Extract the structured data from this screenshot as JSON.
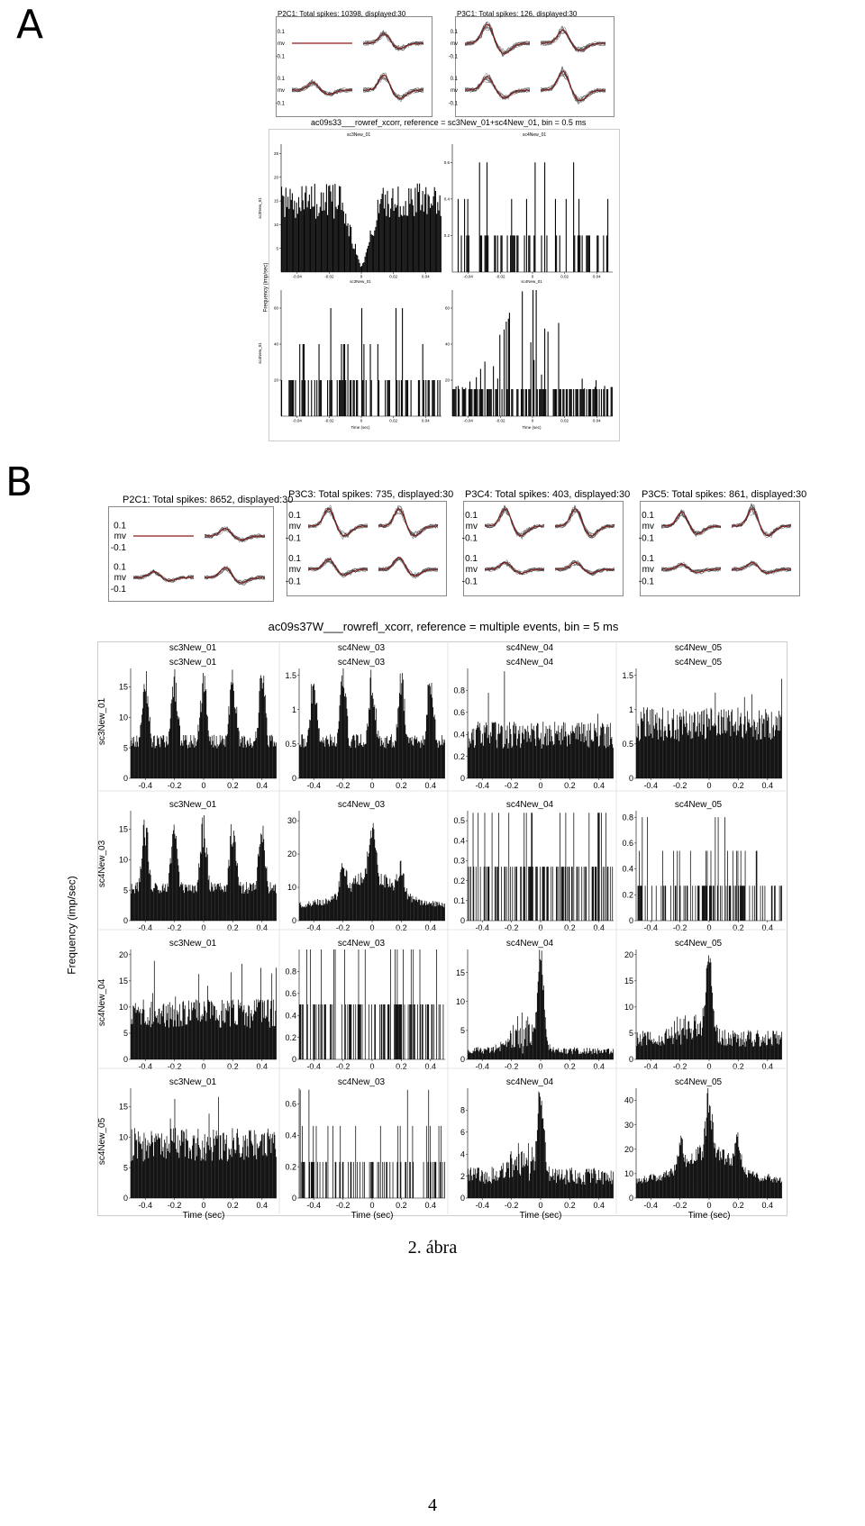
{
  "panels": {
    "a_label": "A",
    "b_label": "B"
  },
  "panel_a": {
    "waveform_titles": [
      "P2C1: Total spikes: 10398, displayed:30",
      "P3C1: Total spikes: 126, displayed:30"
    ],
    "waveform_axis": [
      "0.1",
      "mv",
      "-0.1",
      "0.1",
      "mv",
      "-0.1"
    ],
    "title": "ac09s33___rowref_xcorr, reference = sc3New_01+sc4New_01, bin = 0.5 ms",
    "col_labels": [
      "sc3New_01",
      "sc4New_01"
    ],
    "row_labels": [
      "sc3New_01",
      "sc4New_01"
    ],
    "ylabel": "Frequency (imp/sec)",
    "xlabel": "Time (sec)",
    "xticks": [
      "-0.04",
      "-0.02",
      "0",
      "0.02",
      "0.04"
    ]
  },
  "panel_b": {
    "waveform_titles": [
      "P2C1: Total spikes: 8652, displayed:30",
      "P3C3: Total spikes: 735, displayed:30",
      "P3C4: Total spikes: 403, displayed:30",
      "P3C5: Total spikes: 861, displayed:30"
    ],
    "waveform_axis": [
      "0.1",
      "mv",
      "-0.1",
      "0.1",
      "mv",
      "-0.1"
    ],
    "title": "ac09s37W___rowrefl_xcorr, reference = multiple events, bin = 5 ms",
    "col_headers": [
      "sc3New_01",
      "sc4New_03",
      "sc4New_04",
      "sc4New_05"
    ],
    "row_labels": [
      "sc3New_01",
      "sc4New_03",
      "sc4New_04",
      "sc4New_05"
    ],
    "ylabel": "Frequency (imp/sec)",
    "xlabel": "Time (sec)",
    "xticks": [
      "-0.4",
      "-0.2",
      "0",
      "0.2",
      "0.4"
    ]
  },
  "caption": "2. ábra",
  "page_number": "4",
  "chart_data": [
    {
      "type": "bar",
      "panel": "A",
      "title": "ac09s33___rowref_xcorr, reference = sc3New_01+sc4New_01, bin = 0.5 ms",
      "xlabel": "Time (sec)",
      "ylabel": "Frequency (imp/sec)",
      "xlim": [
        -0.05,
        0.05
      ],
      "cells": [
        {
          "row": "sc3New_01",
          "col": "sc3New_01",
          "yticks": [
            "5",
            "10",
            "15",
            "20",
            "25"
          ],
          "ylim": [
            0,
            27
          ],
          "shape": "trough",
          "base": 15,
          "peak": 0
        },
        {
          "row": "sc3New_01",
          "col": "sc4New_01",
          "yticks": [
            "0.2",
            "0.4",
            "0.6"
          ],
          "ylim": [
            0,
            0.7
          ],
          "shape": "sparse",
          "base": 0.2,
          "peak": 0.6
        },
        {
          "row": "sc4New_01",
          "col": "sc3New_01",
          "yticks": [
            "20",
            "40",
            "60"
          ],
          "ylim": [
            0,
            70
          ],
          "shape": "sparse",
          "base": 20,
          "peak": 60
        },
        {
          "row": "sc4New_01",
          "col": "sc4New_01",
          "yticks": [
            "20",
            "40",
            "60"
          ],
          "ylim": [
            0,
            70
          ],
          "shape": "sparse-peak",
          "base": 15,
          "peak": 60
        }
      ]
    },
    {
      "type": "bar",
      "panel": "B",
      "title": "ac09s37W___rowrefl_xcorr, reference = multiple events, bin = 5 ms",
      "xlabel": "Time (sec)",
      "ylabel": "Frequency (imp/sec)",
      "xlim": [
        -0.5,
        0.5
      ],
      "cells": [
        {
          "row": "sc3New_01",
          "col": "sc3New_01",
          "yticks": [
            "0",
            "5",
            "10",
            "15"
          ],
          "ylim": [
            0,
            18
          ],
          "shape": "osc",
          "base": 10,
          "peak": 17
        },
        {
          "row": "sc3New_01",
          "col": "sc4New_03",
          "yticks": [
            "0",
            "0.5",
            "1",
            "1.5"
          ],
          "ylim": [
            0,
            1.6
          ],
          "shape": "osc",
          "base": 0.9,
          "peak": 1.5
        },
        {
          "row": "sc3New_01",
          "col": "sc4New_04",
          "yticks": [
            "0",
            "0.2",
            "0.4",
            "0.6",
            "0.8"
          ],
          "ylim": [
            0,
            1.0
          ],
          "shape": "noise",
          "base": 0.45,
          "peak": 0.95
        },
        {
          "row": "sc3New_01",
          "col": "sc4New_05",
          "yticks": [
            "0",
            "0.5",
            "1",
            "1.5"
          ],
          "ylim": [
            0,
            1.6
          ],
          "shape": "noise",
          "base": 0.9,
          "peak": 1.5
        },
        {
          "row": "sc4New_03",
          "col": "sc3New_01",
          "yticks": [
            "0",
            "5",
            "10",
            "15"
          ],
          "ylim": [
            0,
            18
          ],
          "shape": "osc",
          "base": 9,
          "peak": 16
        },
        {
          "row": "sc4New_03",
          "col": "sc4New_03",
          "yticks": [
            "0",
            "10",
            "20",
            "30"
          ],
          "ylim": [
            0,
            33
          ],
          "shape": "osc-peak",
          "base": 5,
          "peak": 32
        },
        {
          "row": "sc4New_03",
          "col": "sc4New_04",
          "yticks": [
            "0",
            "0.1",
            "0.2",
            "0.3",
            "0.4",
            "0.5"
          ],
          "ylim": [
            0,
            0.55
          ],
          "shape": "sparse",
          "base": 0.27,
          "peak": 0.54
        },
        {
          "row": "sc4New_03",
          "col": "sc4New_05",
          "yticks": [
            "0",
            "0.2",
            "0.4",
            "0.6",
            "0.8"
          ],
          "ylim": [
            0,
            0.85
          ],
          "shape": "sparse",
          "base": 0.27,
          "peak": 0.8
        },
        {
          "row": "sc4New_04",
          "col": "sc3New_01",
          "yticks": [
            "0",
            "5",
            "10",
            "15",
            "20"
          ],
          "ylim": [
            0,
            21
          ],
          "shape": "noise",
          "base": 10,
          "peak": 20
        },
        {
          "row": "sc4New_04",
          "col": "sc4New_03",
          "yticks": [
            "0",
            "0.2",
            "0.4",
            "0.6",
            "0.8"
          ],
          "ylim": [
            0,
            1.0
          ],
          "shape": "sparse",
          "base": 0.5,
          "peak": 1.0
        },
        {
          "row": "sc4New_04",
          "col": "sc4New_04",
          "yticks": [
            "0",
            "5",
            "10",
            "15"
          ],
          "ylim": [
            0,
            19
          ],
          "shape": "center-peak",
          "base": 1.5,
          "peak": 19
        },
        {
          "row": "sc4New_04",
          "col": "sc4New_05",
          "yticks": [
            "0",
            "5",
            "10",
            "15",
            "20"
          ],
          "ylim": [
            0,
            21
          ],
          "shape": "center-peak",
          "base": 4,
          "peak": 20
        },
        {
          "row": "sc4New_05",
          "col": "sc3New_01",
          "yticks": [
            "0",
            "5",
            "10",
            "15"
          ],
          "ylim": [
            0,
            18
          ],
          "shape": "noise",
          "base": 10,
          "peak": 17
        },
        {
          "row": "sc4New_05",
          "col": "sc4New_03",
          "yticks": [
            "0",
            "0.2",
            "0.4",
            "0.6"
          ],
          "ylim": [
            0,
            0.7
          ],
          "shape": "sparse",
          "base": 0.23,
          "peak": 0.69
        },
        {
          "row": "sc4New_05",
          "col": "sc4New_04",
          "yticks": [
            "0",
            "2",
            "4",
            "6",
            "8"
          ],
          "ylim": [
            0,
            10
          ],
          "shape": "center-peak",
          "base": 2,
          "peak": 9.5
        },
        {
          "row": "sc4New_05",
          "col": "sc4New_05",
          "yticks": [
            "0",
            "10",
            "20",
            "30",
            "40"
          ],
          "ylim": [
            0,
            45
          ],
          "shape": "osc-peak",
          "base": 8,
          "peak": 44
        }
      ]
    }
  ]
}
